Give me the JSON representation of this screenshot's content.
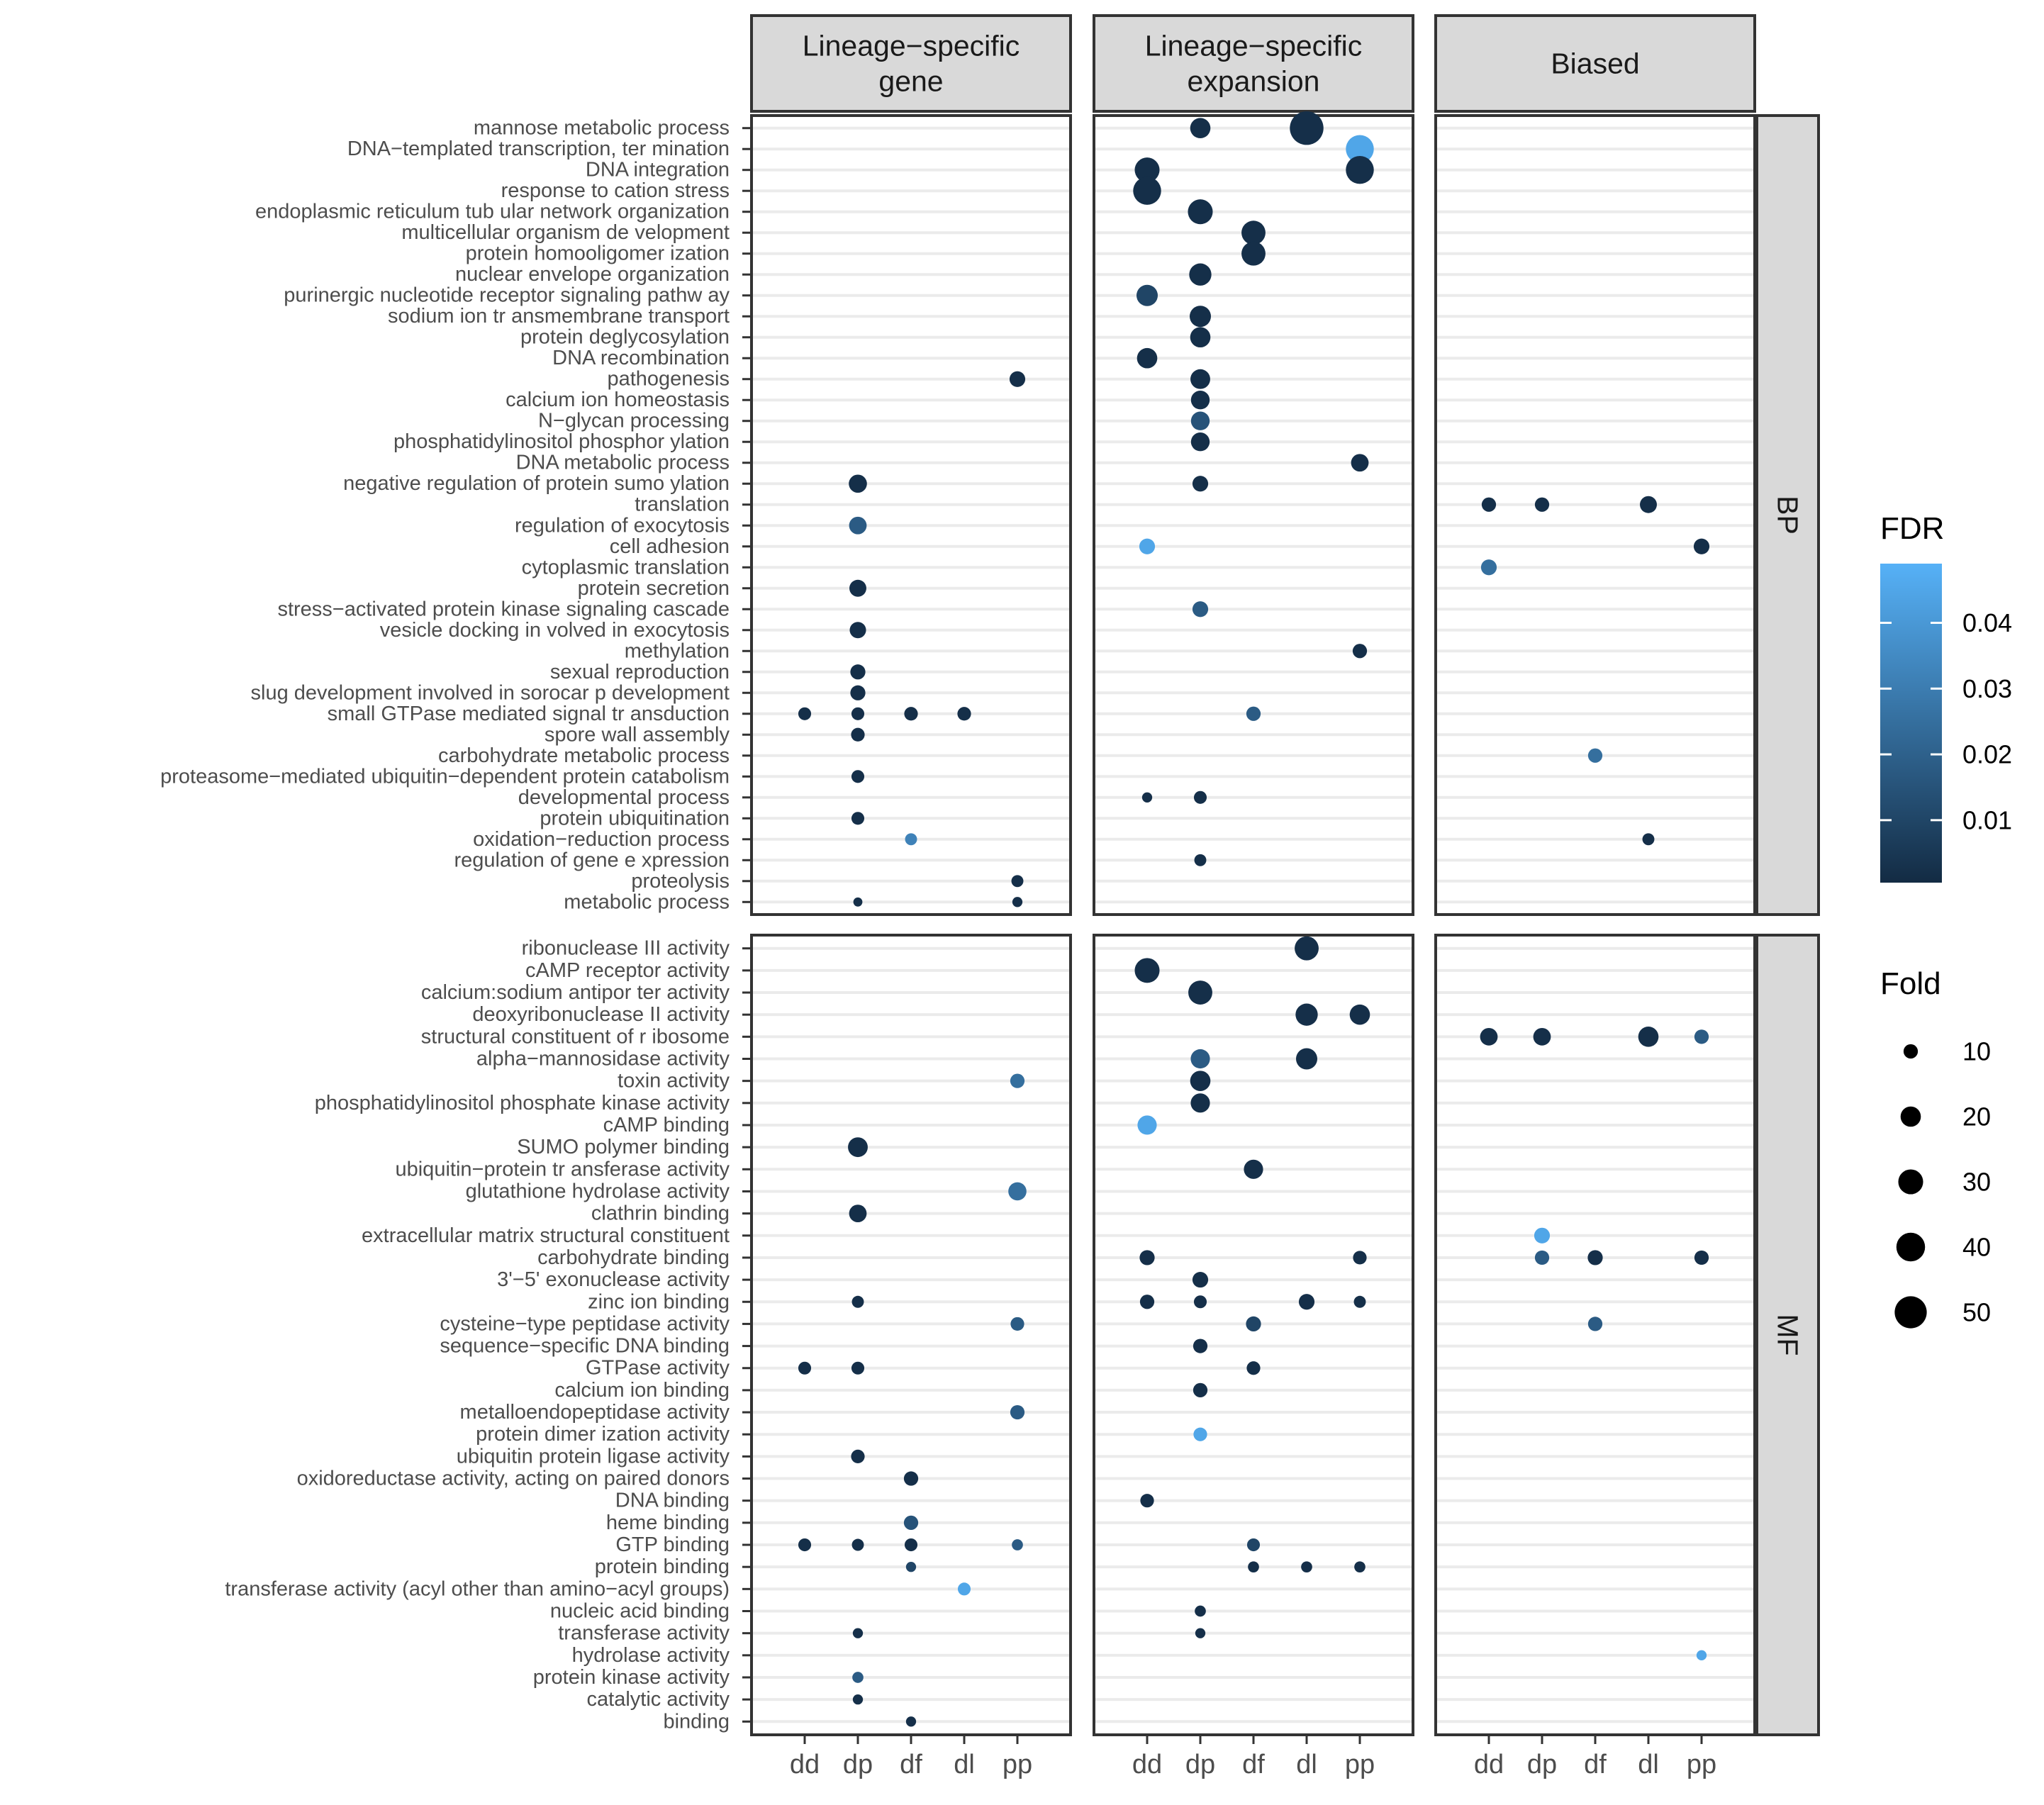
{
  "chart_data": {
    "type": "scatter",
    "columns": [
      "Lineage-specific gene",
      "Lineage-specific expansion",
      "Biased"
    ],
    "column_strip_lines": [
      [
        "Lineage−specific",
        "gene"
      ],
      [
        "Lineage−specific",
        "expansion"
      ],
      [
        "Biased"
      ]
    ],
    "row_facets": [
      "BP",
      "MF"
    ],
    "x_categories": [
      "dd",
      "dp",
      "df",
      "dl",
      "pp"
    ],
    "y_terms": {
      "BP": [
        "mannose metabolic process",
        "DNA−templated transcription, ter mination",
        "DNA integration",
        "response to cation stress",
        "endoplasmic reticulum tub ular network organization",
        "multicellular organism de velopment",
        "protein homooligomer ization",
        "nuclear envelope organization",
        "purinergic nucleotide receptor signaling pathw ay",
        "sodium ion tr ansmembrane transport",
        "protein deglycosylation",
        "DNA recombination",
        "pathogenesis",
        "calcium ion homeostasis",
        "N−glycan processing",
        "phosphatidylinositol phosphor ylation",
        "DNA metabolic process",
        "negative regulation of protein sumo ylation",
        "translation",
        "regulation of exocytosis",
        "cell adhesion",
        "cytoplasmic translation",
        "protein secretion",
        "stress−activated protein kinase signaling cascade",
        "vesicle docking in volved in exocytosis",
        "methylation",
        "sexual reproduction",
        "slug development involved in sorocar p development",
        "small GTPase mediated signal tr ansduction",
        "spore wall assembly",
        "carbohydrate metabolic process",
        "proteasome−mediated ubiquitin−dependent protein catabolism",
        "developmental process",
        "protein ubiquitination",
        "oxidation−reduction process",
        "regulation of gene e xpression",
        "proteolysis",
        "metabolic process"
      ],
      "MF": [
        "ribonuclease III activity",
        "cAMP receptor activity",
        "calcium:sodium antipor ter activity",
        "deoxyribonuclease II activity",
        "structural constituent of r ibosome",
        "alpha−mannosidase activity",
        "toxin activity",
        "phosphatidylinositol phosphate kinase activity",
        "cAMP binding",
        "SUMO polymer binding",
        "ubiquitin−protein tr ansferase activity",
        "glutathione hydrolase activity",
        "clathrin binding",
        "extracellular matrix structural constituent",
        "carbohydrate binding",
        "3'−5' exonuclease activity",
        "zinc ion binding",
        "cysteine−type peptidase activity",
        "sequence−specific DNA binding",
        "GTPase activity",
        "calcium ion binding",
        "metalloendopeptidase activity",
        "protein dimer ization activity",
        "ubiquitin protein ligase activity",
        "oxidoreductase activity, acting on paired donors",
        "DNA binding",
        "heme binding",
        "GTP binding",
        "protein binding",
        "transferase activity (acyl other than amino−acyl groups)",
        "nucleic acid binding",
        "transferase activity",
        "hydrolase activity",
        "protein kinase activity",
        "catalytic activity",
        "binding"
      ]
    },
    "points": [
      {
        "col": 0,
        "facet": "BP",
        "term": 12,
        "x": "pp",
        "fold": 12,
        "fdr": 0.002
      },
      {
        "col": 0,
        "facet": "BP",
        "term": 17,
        "x": "dp",
        "fold": 16,
        "fdr": 0.002
      },
      {
        "col": 0,
        "facet": "BP",
        "term": 19,
        "x": "dp",
        "fold": 15,
        "fdr": 0.018
      },
      {
        "col": 0,
        "facet": "BP",
        "term": 22,
        "x": "dp",
        "fold": 14,
        "fdr": 0.002
      },
      {
        "col": 0,
        "facet": "BP",
        "term": 24,
        "x": "dp",
        "fold": 13,
        "fdr": 0.002
      },
      {
        "col": 0,
        "facet": "BP",
        "term": 26,
        "x": "dp",
        "fold": 11,
        "fdr": 0.002
      },
      {
        "col": 0,
        "facet": "BP",
        "term": 27,
        "x": "dp",
        "fold": 11,
        "fdr": 0.002
      },
      {
        "col": 0,
        "facet": "BP",
        "term": 28,
        "x": "dd",
        "fold": 8,
        "fdr": 0.002
      },
      {
        "col": 0,
        "facet": "BP",
        "term": 28,
        "x": "dp",
        "fold": 8,
        "fdr": 0.002
      },
      {
        "col": 0,
        "facet": "BP",
        "term": 28,
        "x": "df",
        "fold": 9,
        "fdr": 0.002
      },
      {
        "col": 0,
        "facet": "BP",
        "term": 28,
        "x": "dl",
        "fold": 9,
        "fdr": 0.002
      },
      {
        "col": 0,
        "facet": "BP",
        "term": 29,
        "x": "dp",
        "fold": 9,
        "fdr": 0.002
      },
      {
        "col": 0,
        "facet": "BP",
        "term": 31,
        "x": "dp",
        "fold": 8,
        "fdr": 0.002
      },
      {
        "col": 0,
        "facet": "BP",
        "term": 33,
        "x": "dp",
        "fold": 8,
        "fdr": 0.002
      },
      {
        "col": 0,
        "facet": "BP",
        "term": 34,
        "x": "df",
        "fold": 7,
        "fdr": 0.032
      },
      {
        "col": 0,
        "facet": "BP",
        "term": 36,
        "x": "pp",
        "fold": 7,
        "fdr": 0.002
      },
      {
        "col": 0,
        "facet": "BP",
        "term": 37,
        "x": "dp",
        "fold": 4,
        "fdr": 0.002
      },
      {
        "col": 0,
        "facet": "BP",
        "term": 37,
        "x": "pp",
        "fold": 5,
        "fdr": 0.002
      },
      {
        "col": 1,
        "facet": "BP",
        "term": 0,
        "x": "dp",
        "fold": 20,
        "fdr": 0.002
      },
      {
        "col": 1,
        "facet": "BP",
        "term": 0,
        "x": "dl",
        "fold": 55,
        "fdr": 0.002
      },
      {
        "col": 1,
        "facet": "BP",
        "term": 1,
        "x": "pp",
        "fold": 38,
        "fdr": 0.045
      },
      {
        "col": 1,
        "facet": "BP",
        "term": 2,
        "x": "dd",
        "fold": 30,
        "fdr": 0.002
      },
      {
        "col": 1,
        "facet": "BP",
        "term": 2,
        "x": "pp",
        "fold": 38,
        "fdr": 0.002
      },
      {
        "col": 1,
        "facet": "BP",
        "term": 3,
        "x": "dd",
        "fold": 38,
        "fdr": 0.002
      },
      {
        "col": 1,
        "facet": "BP",
        "term": 4,
        "x": "dp",
        "fold": 30,
        "fdr": 0.002
      },
      {
        "col": 1,
        "facet": "BP",
        "term": 5,
        "x": "df",
        "fold": 28,
        "fdr": 0.002
      },
      {
        "col": 1,
        "facet": "BP",
        "term": 6,
        "x": "df",
        "fold": 28,
        "fdr": 0.002
      },
      {
        "col": 1,
        "facet": "BP",
        "term": 7,
        "x": "dp",
        "fold": 24,
        "fdr": 0.002
      },
      {
        "col": 1,
        "facet": "BP",
        "term": 8,
        "x": "dd",
        "fold": 22,
        "fdr": 0.01
      },
      {
        "col": 1,
        "facet": "BP",
        "term": 9,
        "x": "dp",
        "fold": 22,
        "fdr": 0.002
      },
      {
        "col": 1,
        "facet": "BP",
        "term": 10,
        "x": "dp",
        "fold": 20,
        "fdr": 0.002
      },
      {
        "col": 1,
        "facet": "BP",
        "term": 11,
        "x": "dd",
        "fold": 20,
        "fdr": 0.002
      },
      {
        "col": 1,
        "facet": "BP",
        "term": 12,
        "x": "dp",
        "fold": 19,
        "fdr": 0.002
      },
      {
        "col": 1,
        "facet": "BP",
        "term": 13,
        "x": "dp",
        "fold": 17,
        "fdr": 0.002
      },
      {
        "col": 1,
        "facet": "BP",
        "term": 14,
        "x": "dp",
        "fold": 17,
        "fdr": 0.015
      },
      {
        "col": 1,
        "facet": "BP",
        "term": 15,
        "x": "dp",
        "fold": 17,
        "fdr": 0.002
      },
      {
        "col": 1,
        "facet": "BP",
        "term": 16,
        "x": "pp",
        "fold": 15,
        "fdr": 0.002
      },
      {
        "col": 1,
        "facet": "BP",
        "term": 17,
        "x": "dp",
        "fold": 12,
        "fdr": 0.002
      },
      {
        "col": 1,
        "facet": "BP",
        "term": 20,
        "x": "dd",
        "fold": 12,
        "fdr": 0.045
      },
      {
        "col": 1,
        "facet": "BP",
        "term": 23,
        "x": "dp",
        "fold": 12,
        "fdr": 0.018
      },
      {
        "col": 1,
        "facet": "BP",
        "term": 25,
        "x": "pp",
        "fold": 10,
        "fdr": 0.002
      },
      {
        "col": 1,
        "facet": "BP",
        "term": 28,
        "x": "df",
        "fold": 10,
        "fdr": 0.018
      },
      {
        "col": 1,
        "facet": "BP",
        "term": 32,
        "x": "dd",
        "fold": 5,
        "fdr": 0.002
      },
      {
        "col": 1,
        "facet": "BP",
        "term": 32,
        "x": "dp",
        "fold": 8,
        "fdr": 0.002
      },
      {
        "col": 1,
        "facet": "BP",
        "term": 35,
        "x": "dp",
        "fold": 7,
        "fdr": 0.002
      },
      {
        "col": 2,
        "facet": "BP",
        "term": 18,
        "x": "dd",
        "fold": 10,
        "fdr": 0.002
      },
      {
        "col": 2,
        "facet": "BP",
        "term": 18,
        "x": "dp",
        "fold": 10,
        "fdr": 0.002
      },
      {
        "col": 2,
        "facet": "BP",
        "term": 18,
        "x": "dl",
        "fold": 14,
        "fdr": 0.002
      },
      {
        "col": 2,
        "facet": "BP",
        "term": 20,
        "x": "pp",
        "fold": 12,
        "fdr": 0.002
      },
      {
        "col": 2,
        "facet": "BP",
        "term": 21,
        "x": "dd",
        "fold": 12,
        "fdr": 0.025
      },
      {
        "col": 2,
        "facet": "BP",
        "term": 30,
        "x": "df",
        "fold": 10,
        "fdr": 0.025
      },
      {
        "col": 2,
        "facet": "BP",
        "term": 34,
        "x": "dl",
        "fold": 7,
        "fdr": 0.002
      },
      {
        "col": 0,
        "facet": "MF",
        "term": 6,
        "x": "pp",
        "fold": 10,
        "fdr": 0.025
      },
      {
        "col": 0,
        "facet": "MF",
        "term": 9,
        "x": "dp",
        "fold": 19,
        "fdr": 0.002
      },
      {
        "col": 0,
        "facet": "MF",
        "term": 11,
        "x": "pp",
        "fold": 16,
        "fdr": 0.025
      },
      {
        "col": 0,
        "facet": "MF",
        "term": 12,
        "x": "dp",
        "fold": 15,
        "fdr": 0.002
      },
      {
        "col": 0,
        "facet": "MF",
        "term": 16,
        "x": "dp",
        "fold": 7,
        "fdr": 0.002
      },
      {
        "col": 0,
        "facet": "MF",
        "term": 17,
        "x": "pp",
        "fold": 9,
        "fdr": 0.018
      },
      {
        "col": 0,
        "facet": "MF",
        "term": 19,
        "x": "dd",
        "fold": 8,
        "fdr": 0.002
      },
      {
        "col": 0,
        "facet": "MF",
        "term": 19,
        "x": "dp",
        "fold": 8,
        "fdr": 0.002
      },
      {
        "col": 0,
        "facet": "MF",
        "term": 21,
        "x": "pp",
        "fold": 10,
        "fdr": 0.018
      },
      {
        "col": 0,
        "facet": "MF",
        "term": 23,
        "x": "dp",
        "fold": 9,
        "fdr": 0.002
      },
      {
        "col": 0,
        "facet": "MF",
        "term": 24,
        "x": "df",
        "fold": 10,
        "fdr": 0.002
      },
      {
        "col": 0,
        "facet": "MF",
        "term": 26,
        "x": "df",
        "fold": 10,
        "fdr": 0.015
      },
      {
        "col": 0,
        "facet": "MF",
        "term": 27,
        "x": "dd",
        "fold": 8,
        "fdr": 0.002
      },
      {
        "col": 0,
        "facet": "MF",
        "term": 27,
        "x": "dp",
        "fold": 7,
        "fdr": 0.002
      },
      {
        "col": 0,
        "facet": "MF",
        "term": 27,
        "x": "df",
        "fold": 8,
        "fdr": 0.002
      },
      {
        "col": 0,
        "facet": "MF",
        "term": 27,
        "x": "pp",
        "fold": 6,
        "fdr": 0.018
      },
      {
        "col": 0,
        "facet": "MF",
        "term": 28,
        "x": "df",
        "fold": 5,
        "fdr": 0.01
      },
      {
        "col": 0,
        "facet": "MF",
        "term": 29,
        "x": "dl",
        "fold": 8,
        "fdr": 0.045
      },
      {
        "col": 0,
        "facet": "MF",
        "term": 31,
        "x": "dp",
        "fold": 5,
        "fdr": 0.002
      },
      {
        "col": 0,
        "facet": "MF",
        "term": 33,
        "x": "dp",
        "fold": 6,
        "fdr": 0.018
      },
      {
        "col": 0,
        "facet": "MF",
        "term": 34,
        "x": "dp",
        "fold": 5,
        "fdr": 0.002
      },
      {
        "col": 0,
        "facet": "MF",
        "term": 35,
        "x": "df",
        "fold": 5,
        "fdr": 0.002
      },
      {
        "col": 1,
        "facet": "MF",
        "term": 0,
        "x": "dl",
        "fold": 28,
        "fdr": 0.002
      },
      {
        "col": 1,
        "facet": "MF",
        "term": 1,
        "x": "dd",
        "fold": 30,
        "fdr": 0.002
      },
      {
        "col": 1,
        "facet": "MF",
        "term": 2,
        "x": "dp",
        "fold": 28,
        "fdr": 0.002
      },
      {
        "col": 1,
        "facet": "MF",
        "term": 3,
        "x": "dl",
        "fold": 24,
        "fdr": 0.002
      },
      {
        "col": 1,
        "facet": "MF",
        "term": 3,
        "x": "pp",
        "fold": 20,
        "fdr": 0.002
      },
      {
        "col": 1,
        "facet": "MF",
        "term": 5,
        "x": "dp",
        "fold": 18,
        "fdr": 0.018
      },
      {
        "col": 1,
        "facet": "MF",
        "term": 5,
        "x": "dl",
        "fold": 22,
        "fdr": 0.002
      },
      {
        "col": 1,
        "facet": "MF",
        "term": 6,
        "x": "dp",
        "fold": 20,
        "fdr": 0.002
      },
      {
        "col": 1,
        "facet": "MF",
        "term": 7,
        "x": "dp",
        "fold": 18,
        "fdr": 0.002
      },
      {
        "col": 1,
        "facet": "MF",
        "term": 8,
        "x": "dd",
        "fold": 18,
        "fdr": 0.045
      },
      {
        "col": 1,
        "facet": "MF",
        "term": 10,
        "x": "df",
        "fold": 18,
        "fdr": 0.002
      },
      {
        "col": 1,
        "facet": "MF",
        "term": 14,
        "x": "dd",
        "fold": 11,
        "fdr": 0.002
      },
      {
        "col": 1,
        "facet": "MF",
        "term": 14,
        "x": "pp",
        "fold": 9,
        "fdr": 0.002
      },
      {
        "col": 1,
        "facet": "MF",
        "term": 15,
        "x": "dp",
        "fold": 12,
        "fdr": 0.002
      },
      {
        "col": 1,
        "facet": "MF",
        "term": 16,
        "x": "dd",
        "fold": 10,
        "fdr": 0.002
      },
      {
        "col": 1,
        "facet": "MF",
        "term": 16,
        "x": "dp",
        "fold": 8,
        "fdr": 0.002
      },
      {
        "col": 1,
        "facet": "MF",
        "term": 16,
        "x": "dl",
        "fold": 12,
        "fdr": 0.002
      },
      {
        "col": 1,
        "facet": "MF",
        "term": 16,
        "x": "pp",
        "fold": 7,
        "fdr": 0.002
      },
      {
        "col": 1,
        "facet": "MF",
        "term": 17,
        "x": "df",
        "fold": 11,
        "fdr": 0.01
      },
      {
        "col": 1,
        "facet": "MF",
        "term": 18,
        "x": "dp",
        "fold": 10,
        "fdr": 0.002
      },
      {
        "col": 1,
        "facet": "MF",
        "term": 19,
        "x": "df",
        "fold": 9,
        "fdr": 0.002
      },
      {
        "col": 1,
        "facet": "MF",
        "term": 20,
        "x": "dp",
        "fold": 10,
        "fdr": 0.002
      },
      {
        "col": 1,
        "facet": "MF",
        "term": 22,
        "x": "dp",
        "fold": 9,
        "fdr": 0.045
      },
      {
        "col": 1,
        "facet": "MF",
        "term": 25,
        "x": "dd",
        "fold": 9,
        "fdr": 0.002
      },
      {
        "col": 1,
        "facet": "MF",
        "term": 27,
        "x": "df",
        "fold": 8,
        "fdr": 0.01
      },
      {
        "col": 1,
        "facet": "MF",
        "term": 28,
        "x": "df",
        "fold": 6,
        "fdr": 0.002
      },
      {
        "col": 1,
        "facet": "MF",
        "term": 28,
        "x": "dl",
        "fold": 6,
        "fdr": 0.002
      },
      {
        "col": 1,
        "facet": "MF",
        "term": 28,
        "x": "pp",
        "fold": 6,
        "fdr": 0.002
      },
      {
        "col": 1,
        "facet": "MF",
        "term": 30,
        "x": "dp",
        "fold": 6,
        "fdr": 0.002
      },
      {
        "col": 1,
        "facet": "MF",
        "term": 31,
        "x": "dp",
        "fold": 5,
        "fdr": 0.002
      },
      {
        "col": 2,
        "facet": "MF",
        "term": 4,
        "x": "dd",
        "fold": 15,
        "fdr": 0.002
      },
      {
        "col": 2,
        "facet": "MF",
        "term": 4,
        "x": "dp",
        "fold": 15,
        "fdr": 0.002
      },
      {
        "col": 2,
        "facet": "MF",
        "term": 4,
        "x": "dl",
        "fold": 20,
        "fdr": 0.002
      },
      {
        "col": 2,
        "facet": "MF",
        "term": 4,
        "x": "pp",
        "fold": 10,
        "fdr": 0.018
      },
      {
        "col": 2,
        "facet": "MF",
        "term": 13,
        "x": "dp",
        "fold": 12,
        "fdr": 0.045
      },
      {
        "col": 2,
        "facet": "MF",
        "term": 14,
        "x": "dp",
        "fold": 10,
        "fdr": 0.018
      },
      {
        "col": 2,
        "facet": "MF",
        "term": 14,
        "x": "df",
        "fold": 11,
        "fdr": 0.002
      },
      {
        "col": 2,
        "facet": "MF",
        "term": 14,
        "x": "pp",
        "fold": 10,
        "fdr": 0.002
      },
      {
        "col": 2,
        "facet": "MF",
        "term": 17,
        "x": "df",
        "fold": 10,
        "fdr": 0.018
      },
      {
        "col": 2,
        "facet": "MF",
        "term": 32,
        "x": "pp",
        "fold": 5,
        "fdr": 0.045
      }
    ],
    "legend_fdr": {
      "title": "FDR",
      "ticks": [
        0.04,
        0.03,
        0.02,
        0.01
      ],
      "tick_labels": [
        "0.04",
        "0.03",
        "0.02",
        "0.01"
      ],
      "range": [
        0.0005,
        0.049
      ],
      "colors": [
        "#132b43",
        "#56b1f7"
      ]
    },
    "legend_fold": {
      "title": "Fold",
      "values": [
        10,
        20,
        30,
        40,
        50
      ],
      "labels": [
        "10",
        "20",
        "30",
        "40",
        "50"
      ]
    }
  }
}
